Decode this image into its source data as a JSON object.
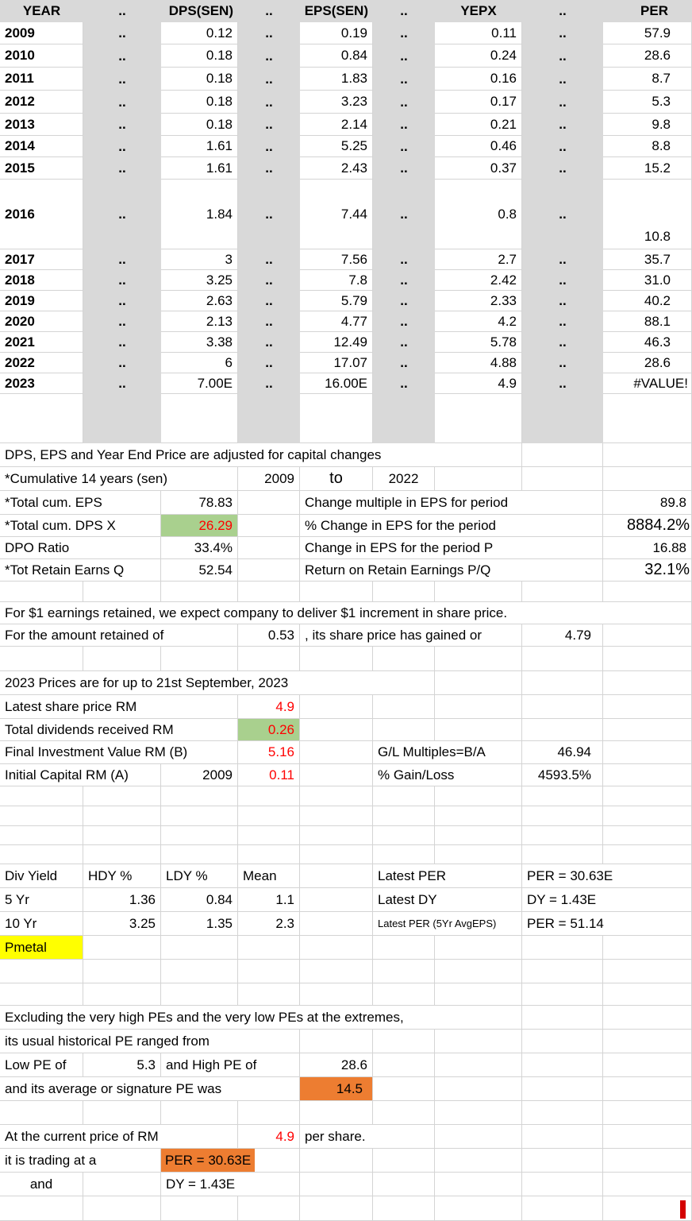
{
  "table": {
    "dots": "..",
    "headers": [
      "YEAR",
      "DPS(SEN)",
      "EPS(SEN)",
      "YEPX",
      "PER"
    ],
    "rows": [
      {
        "year": "2009",
        "dps": "0.12",
        "eps": "0.19",
        "yepx": "0.11",
        "per": "57.9"
      },
      {
        "year": "2010",
        "dps": "0.18",
        "eps": "0.84",
        "yepx": "0.24",
        "per": "28.6"
      },
      {
        "year": "2011",
        "dps": "0.18",
        "eps": "1.83",
        "yepx": "0.16",
        "per": "8.7"
      },
      {
        "year": "2012",
        "dps": "0.18",
        "eps": "3.23",
        "yepx": "0.17",
        "per": "5.3"
      },
      {
        "year": "2013",
        "dps": "0.18",
        "eps": "2.14",
        "yepx": "0.21",
        "per": "9.8"
      },
      {
        "year": "2014",
        "dps": "1.61",
        "eps": "5.25",
        "yepx": "0.46",
        "per": "8.8"
      },
      {
        "year": "2015",
        "dps": "1.61",
        "eps": "2.43",
        "yepx": "0.37",
        "per": "15.2"
      },
      {
        "year": "2016",
        "dps": "1.84",
        "eps": "7.44",
        "yepx": "0.8",
        "per": "10.8"
      },
      {
        "year": "2017",
        "dps": "3",
        "eps": "7.56",
        "yepx": "2.7",
        "per": "35.7"
      },
      {
        "year": "2018",
        "dps": "3.25",
        "eps": "7.8",
        "yepx": "2.42",
        "per": "31.0"
      },
      {
        "year": "2019",
        "dps": "2.63",
        "eps": "5.79",
        "yepx": "2.33",
        "per": "40.2"
      },
      {
        "year": "2020",
        "dps": "2.13",
        "eps": "4.77",
        "yepx": "4.2",
        "per": "88.1"
      },
      {
        "year": "2021",
        "dps": "3.38",
        "eps": "12.49",
        "yepx": "5.78",
        "per": "46.3"
      },
      {
        "year": "2022",
        "dps": "6",
        "eps": "17.07",
        "yepx": "4.88",
        "per": "28.6"
      },
      {
        "year": "2023",
        "dps": "7.00E",
        "eps": "16.00E",
        "yepx": "4.9",
        "per": "#VALUE!"
      }
    ]
  },
  "notes": {
    "adjusted": "DPS, EPS and Year End Price are adjusted for capital changes"
  },
  "cumulative": {
    "label": "*Cumulative 14 years (sen)",
    "from": "2009",
    "to_word": "to",
    "to": "2022"
  },
  "summary": {
    "total_eps_label": "*Total cum. EPS",
    "total_eps": "78.83",
    "change_multiple_label": "Change multiple in EPS for period",
    "change_multiple": "89.8",
    "total_dps_label": "*Total cum. DPS  X",
    "total_dps": "26.29",
    "pct_change_label": "% Change in EPS for the period",
    "pct_change": "8884.2%",
    "dpo_label": "DPO Ratio",
    "dpo": "33.4%",
    "change_eps_label": "Change in EPS for the period P",
    "change_eps": "16.88",
    "retain_label": "*Tot Retain Earns Q",
    "retain": "52.54",
    "return_label": "Return on Retain Earnings P/Q",
    "return": "32.1%"
  },
  "retained": {
    "line1": "For $1 earnings retained, we expect company to deliver $1 increment in share price.",
    "line2_label": "For the amount retained of",
    "amount": "0.53",
    "line2_mid": ", its share price has gained or",
    "gained": "4.79"
  },
  "prices2023": {
    "note": "2023 Prices are for up to 21st September, 2023",
    "latest_label": "Latest share price  RM",
    "latest": "4.9",
    "dividends_label": "Total dividends received RM",
    "dividends": "0.26",
    "final_label": "Final Investment Value RM  (B)",
    "final": "5.16",
    "gl_label": "G/L Multiples=B/A",
    "gl": "46.94",
    "initial_label": "Initial Capital RM  (A)",
    "initial_year": "2009",
    "initial": "0.11",
    "gain_label": "% Gain/Loss",
    "gain": "4593.5%"
  },
  "divyield": {
    "col_labels": [
      "Div Yield",
      "HDY %",
      "LDY %",
      "Mean"
    ],
    "rows": [
      {
        "period": "5 Yr",
        "hdy": "1.36",
        "ldy": "0.84",
        "mean": "1.1"
      },
      {
        "period": "10 Yr",
        "hdy": "3.25",
        "ldy": "1.35",
        "mean": "2.3"
      }
    ],
    "latest_per_label": "Latest PER",
    "latest_per": "PER = 30.63E",
    "latest_dy_label": "Latest DY",
    "latest_dy": "DY = 1.43E",
    "latest_per5_label": "Latest PER (5Yr AvgEPS)",
    "latest_per5": "PER = 51.14",
    "ticker": "Pmetal"
  },
  "pe": {
    "line1": "Excluding the very high PEs and the very low PEs at the extremes,",
    "line2": "its usual historical PE ranged from",
    "low_label": "Low PE of",
    "low": "5.3",
    "high_label": "and High PE of",
    "high": "28.6",
    "signature_label": "and its average or signature PE was",
    "signature": "14.5"
  },
  "current": {
    "price_label": "At the current price of RM",
    "price": "4.9",
    "per_share": "per share.",
    "trading_label": "it is trading at a",
    "trading_per": "PER = 30.63E",
    "and_word": "and",
    "trading_dy": "DY = 1.43E"
  },
  "colors": {
    "band": "#d9d9d9",
    "green": "#a9d08e",
    "orange": "#ed7d31",
    "yellow": "#ffff00",
    "red": "#ff0000"
  }
}
